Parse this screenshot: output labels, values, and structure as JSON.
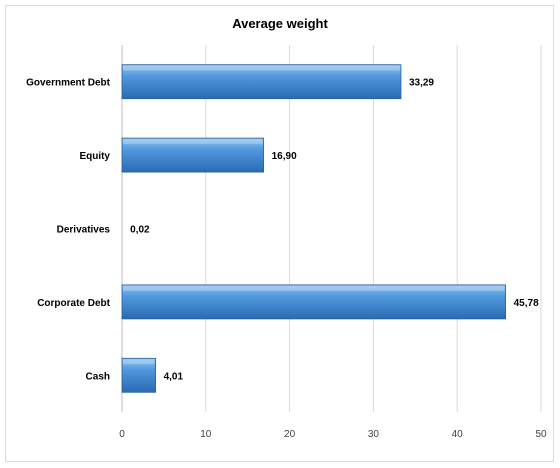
{
  "chart_data": {
    "type": "bar",
    "orientation": "horizontal",
    "title": "Average weight",
    "categories": [
      "Government Debt",
      "Equity",
      "Derivatives",
      "Corporate Debt",
      "Cash"
    ],
    "values": [
      33.29,
      16.9,
      0.02,
      45.78,
      4.01
    ],
    "value_labels": [
      "33,29",
      "16,90",
      "0,02",
      "45,78",
      "4,01"
    ],
    "xlim": [
      0,
      50
    ],
    "xticks": [
      0,
      10,
      20,
      30,
      40,
      50
    ],
    "xlabel": "",
    "ylabel": "",
    "grid": true,
    "legend": "none",
    "bar_color": "#4a90d9",
    "bar_color_dark": "#2e6db4"
  }
}
